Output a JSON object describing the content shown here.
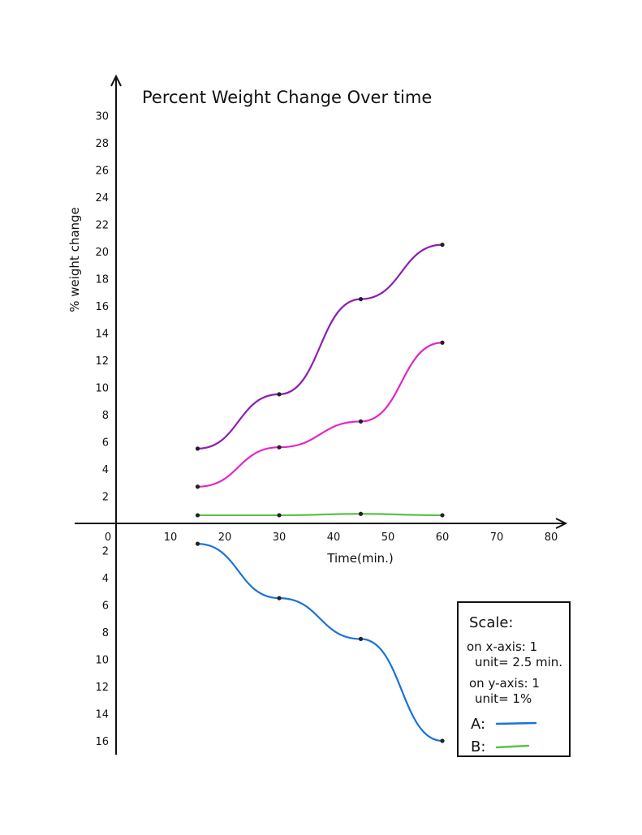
{
  "chart_data": {
    "type": "line",
    "title": "Percent Weight Change Over time",
    "xlabel": "Time(min.)",
    "ylabel": "% weight change",
    "x_ticks": [
      "0",
      "10",
      "20",
      "30",
      "40",
      "50",
      "60",
      "70",
      "80"
    ],
    "y_ticks_positive": [
      "2",
      "4",
      "6",
      "8",
      "10",
      "12",
      "14",
      "16",
      "18",
      "20",
      "22",
      "24",
      "26",
      "28",
      "30"
    ],
    "y_ticks_negative": [
      "2",
      "4",
      "6",
      "8",
      "10",
      "12",
      "14",
      "16"
    ],
    "xlim": [
      0,
      80
    ],
    "ylim": [
      -16,
      30
    ],
    "grid": false,
    "legend_placement": "bottom-right",
    "series": [
      {
        "x": [
          15,
          30,
          45,
          60
        ],
        "y": [
          5.5,
          9.5,
          16.5,
          20.5
        ],
        "color": "#8e1fb0"
      },
      {
        "x": [
          15,
          30,
          45,
          60
        ],
        "y": [
          2.7,
          5.6,
          7.5,
          13.3
        ],
        "color": "#e325c8"
      },
      {
        "name": "B",
        "x": [
          15,
          30,
          45,
          60
        ],
        "y": [
          0.6,
          0.6,
          0.7,
          0.6
        ],
        "color": "#5cc24a"
      },
      {
        "name": "A",
        "x": [
          15,
          30,
          45,
          60
        ],
        "y": [
          -1.5,
          -5.5,
          -8.5,
          -16
        ],
        "color": "#1a73d9"
      }
    ],
    "legend": {
      "heading": "Scale:",
      "x_scale_line1": "on x-axis: 1",
      "x_scale_line2": "unit= 2.5 min.",
      "y_scale_line1": "on y-axis: 1",
      "y_scale_line2": "unit= 1%",
      "entries": [
        {
          "label": "A:",
          "color": "#1a73d9"
        },
        {
          "label": "B:",
          "color": "#5cc24a"
        }
      ]
    }
  }
}
